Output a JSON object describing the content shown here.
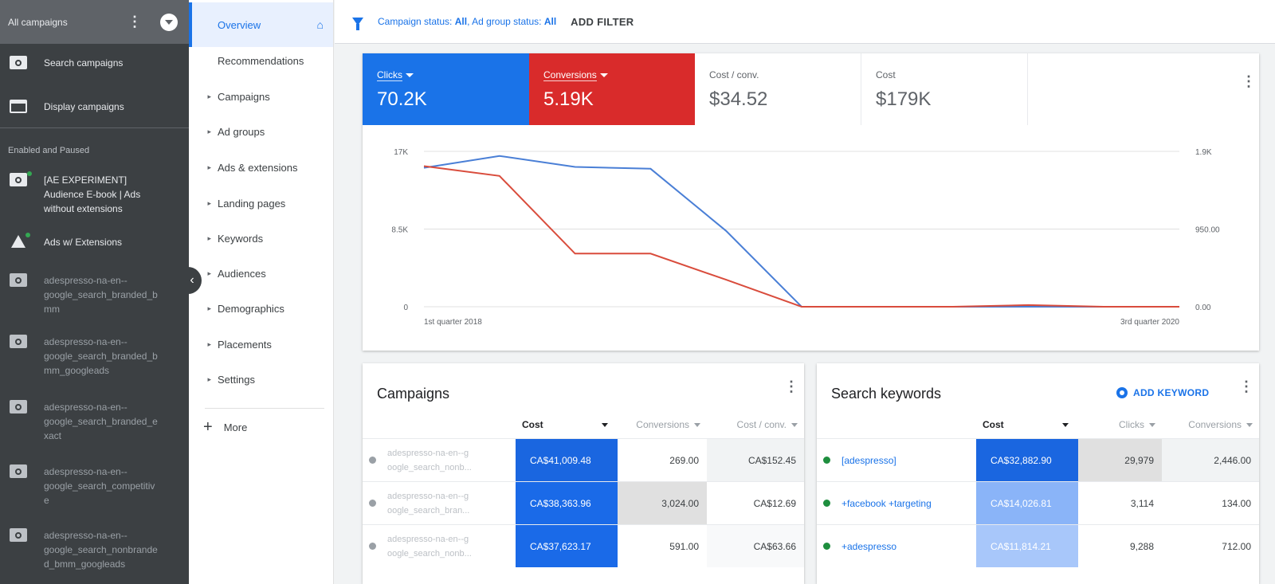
{
  "sidebar": {
    "header_title": "All campaigns",
    "nav_items": [
      {
        "label": "Search campaigns"
      },
      {
        "label": "Display campaigns"
      }
    ],
    "section_label": "Enabled and Paused",
    "campaigns": [
      {
        "label_lines": [
          "[AE EXPERIMENT]",
          "Audience E-book | Ads",
          "without extensions"
        ]
      },
      {
        "label_lines": [
          "Ads w/ Extensions"
        ]
      },
      {
        "label_lines": [
          "adespresso-na-en--",
          "google_search_branded_b",
          "mm"
        ]
      },
      {
        "label_lines": [
          "adespresso-na-en--",
          "google_search_branded_b",
          "mm_googleads"
        ]
      },
      {
        "label_lines": [
          "adespresso-na-en--",
          "google_search_branded_e",
          "xact"
        ]
      },
      {
        "label_lines": [
          "adespresso-na-en--",
          "google_search_competitiv",
          "e"
        ]
      },
      {
        "label_lines": [
          "adespresso-na-en--",
          "google_search_nonbrande",
          "d_bmm_googleads"
        ]
      }
    ]
  },
  "nav": {
    "active": "Overview",
    "recommendations": "Recommendations",
    "items": [
      "Campaigns",
      "Ad groups",
      "Ads & extensions",
      "Landing pages",
      "Keywords",
      "Audiences",
      "Demographics",
      "Placements",
      "Settings"
    ],
    "more": "More"
  },
  "filterbar": {
    "campaign_status_label": "Campaign status:",
    "campaign_status_value": "All",
    "adgroup_status_label": "Ad group status:",
    "adgroup_status_value": "All",
    "add_filter": "ADD FILTER"
  },
  "metrics": [
    {
      "label": "Clicks",
      "value": "70.2K",
      "color": "#1a73e8"
    },
    {
      "label": "Conversions",
      "value": "5.19K",
      "color": "#d92b2b"
    },
    {
      "label": "Cost / conv.",
      "value": "$34.52"
    },
    {
      "label": "Cost",
      "value": "$179K"
    }
  ],
  "chart_data": {
    "type": "line",
    "x_start_label": "1st quarter 2018",
    "x_end_label": "3rd quarter 2020",
    "left_axis": {
      "ticks": [
        "17K",
        "8.5K",
        "0"
      ],
      "range": [
        0,
        17000
      ]
    },
    "right_axis": {
      "ticks": [
        "1.9K",
        "950.00",
        "0.00"
      ],
      "range": [
        0,
        1900
      ]
    },
    "series": [
      {
        "name": "Clicks",
        "axis": "left",
        "color": "#4a7fd6",
        "values": [
          15200,
          16500,
          15300,
          15100,
          8300,
          0,
          0,
          0,
          0,
          0,
          0
        ]
      },
      {
        "name": "Conversions",
        "axis": "right",
        "color": "#d94c3c",
        "values": [
          1720,
          1600,
          650,
          650,
          330,
          0,
          0,
          0,
          20,
          0,
          0
        ]
      }
    ]
  },
  "campaigns_table": {
    "title": "Campaigns",
    "columns": [
      "Cost",
      "Conversions",
      "Cost / conv."
    ],
    "rows": [
      {
        "name_lines": [
          "adespresso-na-en--g",
          "oogle_search_nonb..."
        ],
        "cost": "CA$41,009.48",
        "conversions": "269.00",
        "cost_conv": "CA$152.45"
      },
      {
        "name_lines": [
          "adespresso-na-en--g",
          "oogle_search_bran..."
        ],
        "cost": "CA$38,363.96",
        "conversions": "3,024.00",
        "cost_conv": "CA$12.69"
      },
      {
        "name_lines": [
          "adespresso-na-en--g",
          "oogle_search_nonb..."
        ],
        "cost": "CA$37,623.17",
        "conversions": "591.00",
        "cost_conv": "CA$63.66"
      }
    ]
  },
  "keywords_table": {
    "title": "Search keywords",
    "add_keyword": "ADD KEYWORD",
    "columns": [
      "Cost",
      "Clicks",
      "Conversions"
    ],
    "rows": [
      {
        "keyword": "[adespresso]",
        "cost": "CA$32,882.90",
        "clicks": "29,979",
        "conversions": "2,446.00"
      },
      {
        "keyword": "+facebook +targeting",
        "cost": "CA$14,026.81",
        "clicks": "3,114",
        "conversions": "134.00"
      },
      {
        "keyword": "+adespresso",
        "cost": "CA$11,814.21",
        "clicks": "9,288",
        "conversions": "712.00"
      }
    ]
  }
}
